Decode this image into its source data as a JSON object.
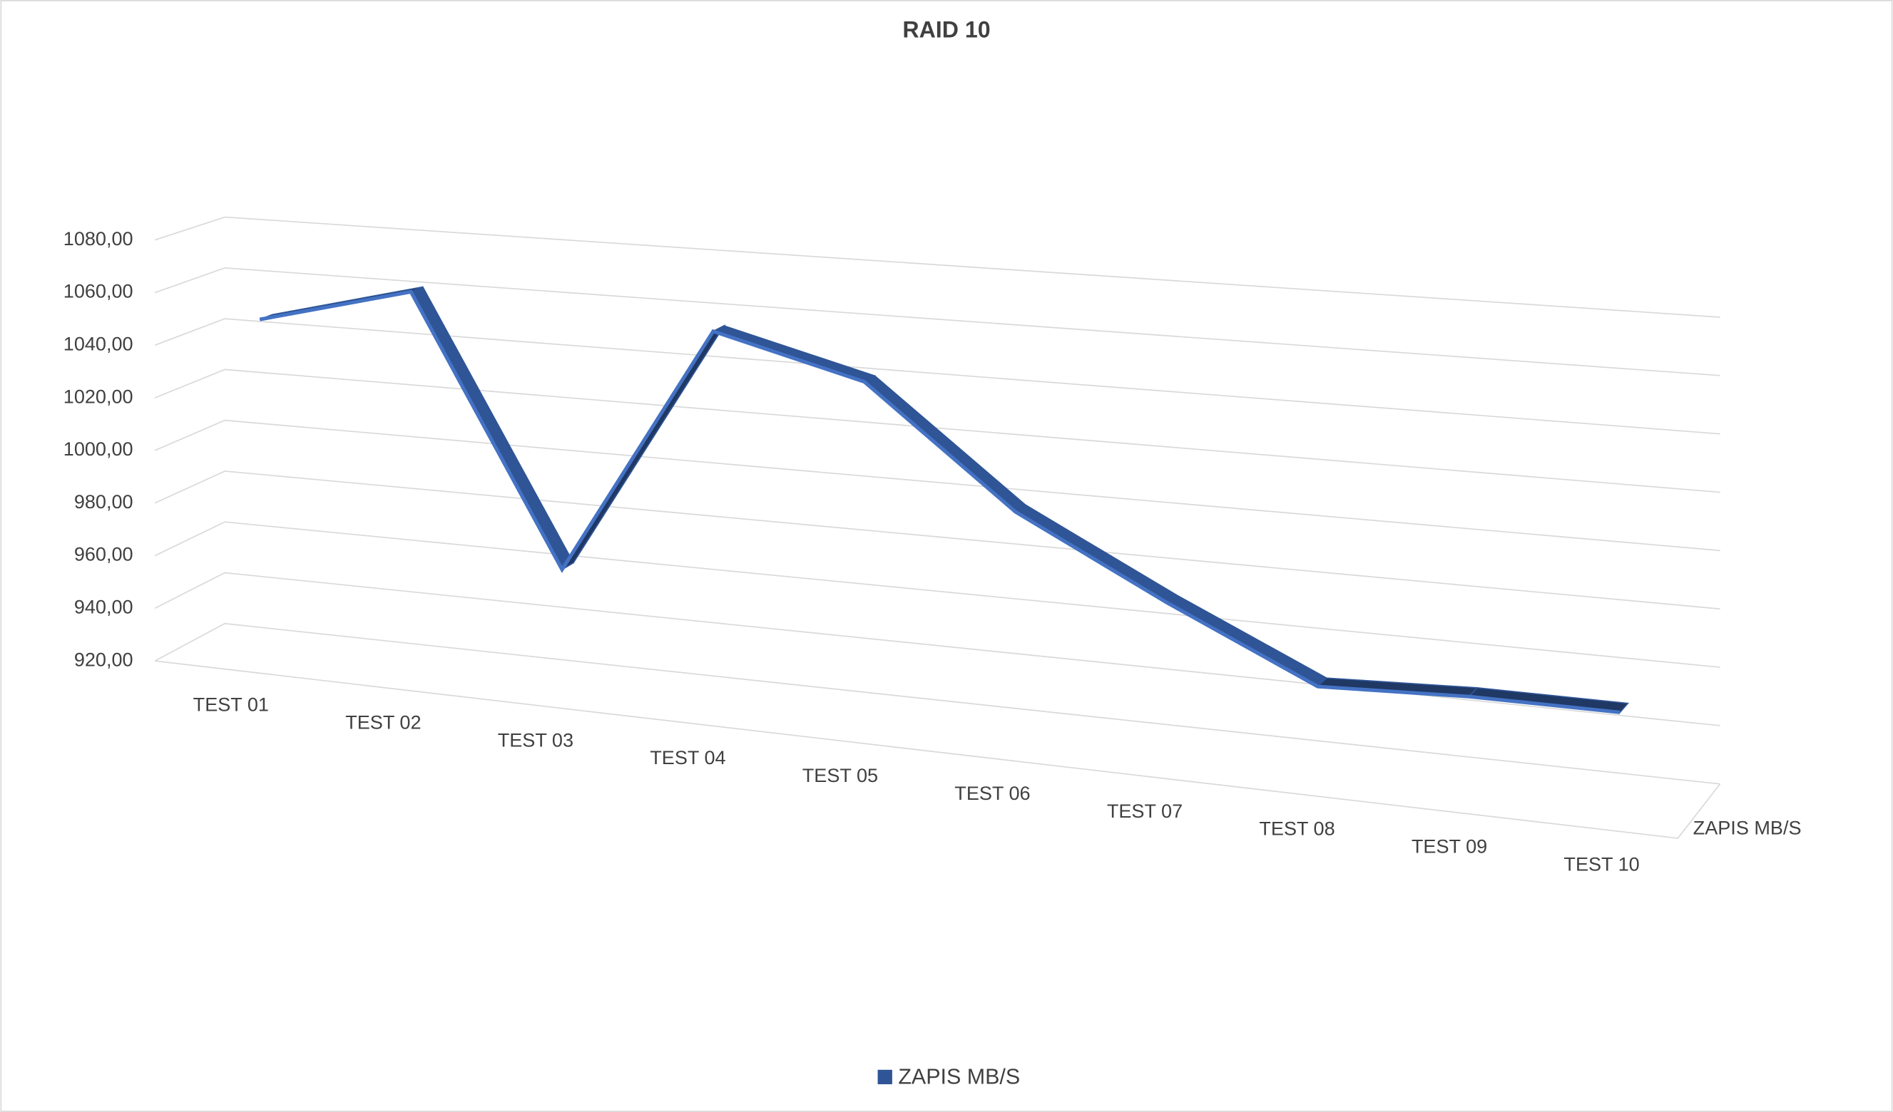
{
  "chart_data": {
    "type": "line3d",
    "title": "RAID 10",
    "categories": [
      "TEST 01",
      "TEST 02",
      "TEST 03",
      "TEST 04",
      "TEST 05",
      "TEST 06",
      "TEST 07",
      "TEST 08",
      "TEST 09",
      "TEST 10"
    ],
    "series": [
      {
        "name": "ZAPIS MB/S",
        "color": "#2f5597",
        "values": [
          1048,
          1063,
          964,
          1057,
          1043,
          1001,
          974,
          950,
          952,
          952
        ]
      }
    ],
    "ylim": [
      920,
      1080
    ],
    "yticks": [
      {
        "value": 920,
        "label": "920,00"
      },
      {
        "value": 940,
        "label": "940,00"
      },
      {
        "value": 960,
        "label": "960,00"
      },
      {
        "value": 980,
        "label": "980,00"
      },
      {
        "value": 1000,
        "label": "1000,00"
      },
      {
        "value": 1020,
        "label": "1020,00"
      },
      {
        "value": 1040,
        "label": "1040,00"
      },
      {
        "value": 1060,
        "label": "1060,00"
      },
      {
        "value": 1080,
        "label": "1080,00"
      }
    ],
    "grid": true,
    "legend": "bottom"
  }
}
